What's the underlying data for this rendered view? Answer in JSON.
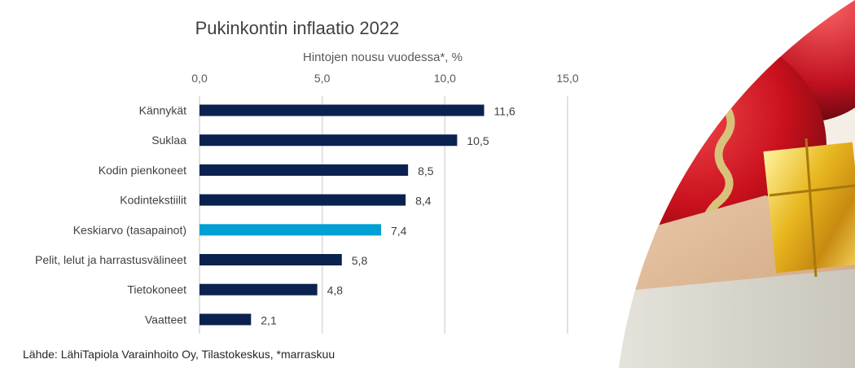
{
  "chart_data": {
    "type": "bar",
    "orientation": "horizontal",
    "title": "Pukinkontin inflaatio 2022",
    "xlabel": "Hintojen nousu vuodessa*, %",
    "ylabel": "",
    "xlim": [
      0,
      15
    ],
    "xticks": [
      0,
      5,
      10,
      15
    ],
    "xtick_labels": [
      "0,0",
      "5,0",
      "10,0",
      "15,0"
    ],
    "grid": true,
    "categories": [
      "Kännykät",
      "Suklaa",
      "Kodin pienkoneet",
      "Kodintekstiilit",
      "Keskiarvo (tasapainot)",
      "Pelit, lelut ja harrastusvälineet",
      "Tietokoneet",
      "Vaatteet"
    ],
    "values": [
      11.6,
      10.5,
      8.5,
      8.4,
      7.4,
      5.8,
      4.8,
      2.1
    ],
    "value_labels": [
      "11,6",
      "10,5",
      "8,5",
      "8,4",
      "7,4",
      "5,8",
      "4,8",
      "2,1"
    ],
    "highlight_index": 4,
    "colors": {
      "bar": "#0b2150",
      "highlight": "#009fd4",
      "grid": "#d9d9d9"
    }
  },
  "footer": {
    "source": "Lähde: LähiTapiola Varainhoito Oy, Tilastokeskus, *marraskuu"
  },
  "decoration": {
    "image": "christmas-ornaments-gift-euro-notes-photo"
  }
}
